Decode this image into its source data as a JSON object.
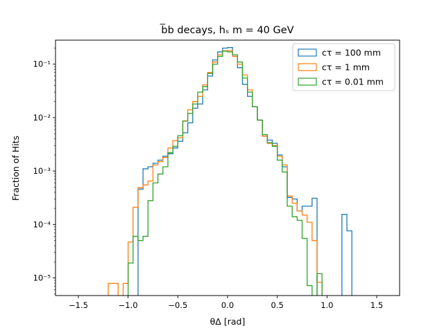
{
  "chart_data": {
    "type": "line",
    "style": "step-histogram",
    "title": "b̅b decays, hₛ m = 40 GeV",
    "xlabel": "θΔ [rad]",
    "ylabel": "Fraction of Hits",
    "xlim": [
      -1.73,
      1.73
    ],
    "ylim_log10": [
      -5.33,
      -0.55
    ],
    "yscale": "log",
    "grid": false,
    "legend_position": "top-right",
    "x_ticks": [
      -1.5,
      -1.0,
      -0.5,
      0.0,
      0.5,
      1.0,
      1.5
    ],
    "x_tick_labels": [
      "−1.5",
      "−1.0",
      "−0.5",
      "0.0",
      "0.5",
      "1.0",
      "1.5"
    ],
    "y_ticks_log10": [
      -5,
      -4,
      -3,
      -2,
      -1
    ],
    "y_tick_labels": [
      "10⁻⁵",
      "10⁻⁴",
      "10⁻³",
      "10⁻²",
      "10⁻¹"
    ],
    "bin_edges": [
      -1.3,
      -1.25,
      -1.2,
      -1.15,
      -1.1,
      -1.05,
      -1.0,
      -0.95,
      -0.9,
      -0.85,
      -0.8,
      -0.75,
      -0.7,
      -0.65,
      -0.6,
      -0.55,
      -0.5,
      -0.45,
      -0.4,
      -0.35,
      -0.3,
      -0.25,
      -0.2,
      -0.15,
      -0.1,
      -0.05,
      0.0,
      0.05,
      0.1,
      0.15,
      0.2,
      0.25,
      0.3,
      0.35,
      0.4,
      0.45,
      0.5,
      0.55,
      0.6,
      0.65,
      0.7,
      0.75,
      0.8,
      0.85,
      0.9,
      0.95,
      1.0,
      1.05,
      1.1,
      1.15,
      1.2,
      1.25,
      1.3,
      1.35
    ],
    "series": [
      {
        "name": "cτ = 100 mm",
        "color": "#1f77b4",
        "values": [
          null,
          null,
          null,
          null,
          null,
          null,
          null,
          null,
          0.00046,
          0.0011,
          0.0012,
          0.0014,
          0.0016,
          0.0019,
          0.0021,
          0.0027,
          0.0036,
          0.0052,
          0.008,
          0.015,
          0.018,
          0.033,
          0.06,
          0.12,
          0.17,
          0.2,
          0.205,
          0.14,
          0.086,
          0.042,
          0.025,
          0.016,
          0.009,
          0.0045,
          0.0038,
          0.0033,
          0.002,
          0.0012,
          0.00032,
          0.0003,
          0.00018,
          0.00022,
          0.00022,
          0.00031,
          null,
          null,
          null,
          null,
          null,
          0.000155,
          7.6e-05,
          null,
          null
        ]
      },
      {
        "name": "cτ = 1 mm",
        "color": "#ff7f0e",
        "values": [
          null,
          null,
          7.9e-06,
          7.9e-06,
          null,
          7.9e-06,
          4.7e-05,
          0.00021,
          0.00049,
          0.00055,
          0.00065,
          0.0013,
          0.0015,
          0.0018,
          0.0027,
          0.0037,
          0.0042,
          0.0087,
          0.014,
          0.02,
          0.025,
          0.041,
          0.07,
          0.11,
          0.15,
          0.178,
          0.18,
          0.14,
          0.1,
          0.063,
          0.033,
          0.016,
          0.009,
          0.0045,
          0.0033,
          0.003,
          0.0019,
          0.0013,
          0.00034,
          0.00025,
          0.00018,
          0.00015,
          0.00011,
          5e-05,
          8.3e-06,
          null,
          null,
          null,
          null,
          null,
          null,
          null,
          null
        ]
      },
      {
        "name": "cτ = 0.01 mm",
        "color": "#2ca02c",
        "values": [
          null,
          null,
          null,
          null,
          null,
          null,
          1.9e-05,
          6e-05,
          5e-05,
          6e-05,
          0.00028,
          0.0006,
          0.00088,
          0.0012,
          0.0022,
          0.0029,
          0.0046,
          0.0086,
          0.012,
          0.018,
          0.03,
          0.038,
          0.067,
          0.1,
          0.14,
          0.175,
          0.17,
          0.15,
          0.11,
          0.055,
          0.03,
          0.016,
          0.009,
          0.0048,
          0.0034,
          0.0029,
          0.0016,
          0.00096,
          0.00022,
          0.00014,
          0.00012,
          5.5e-05,
          7.2e-06,
          4.5e-06,
          1.2e-05,
          null,
          null,
          null,
          null,
          null,
          null,
          null,
          null
        ]
      }
    ]
  }
}
